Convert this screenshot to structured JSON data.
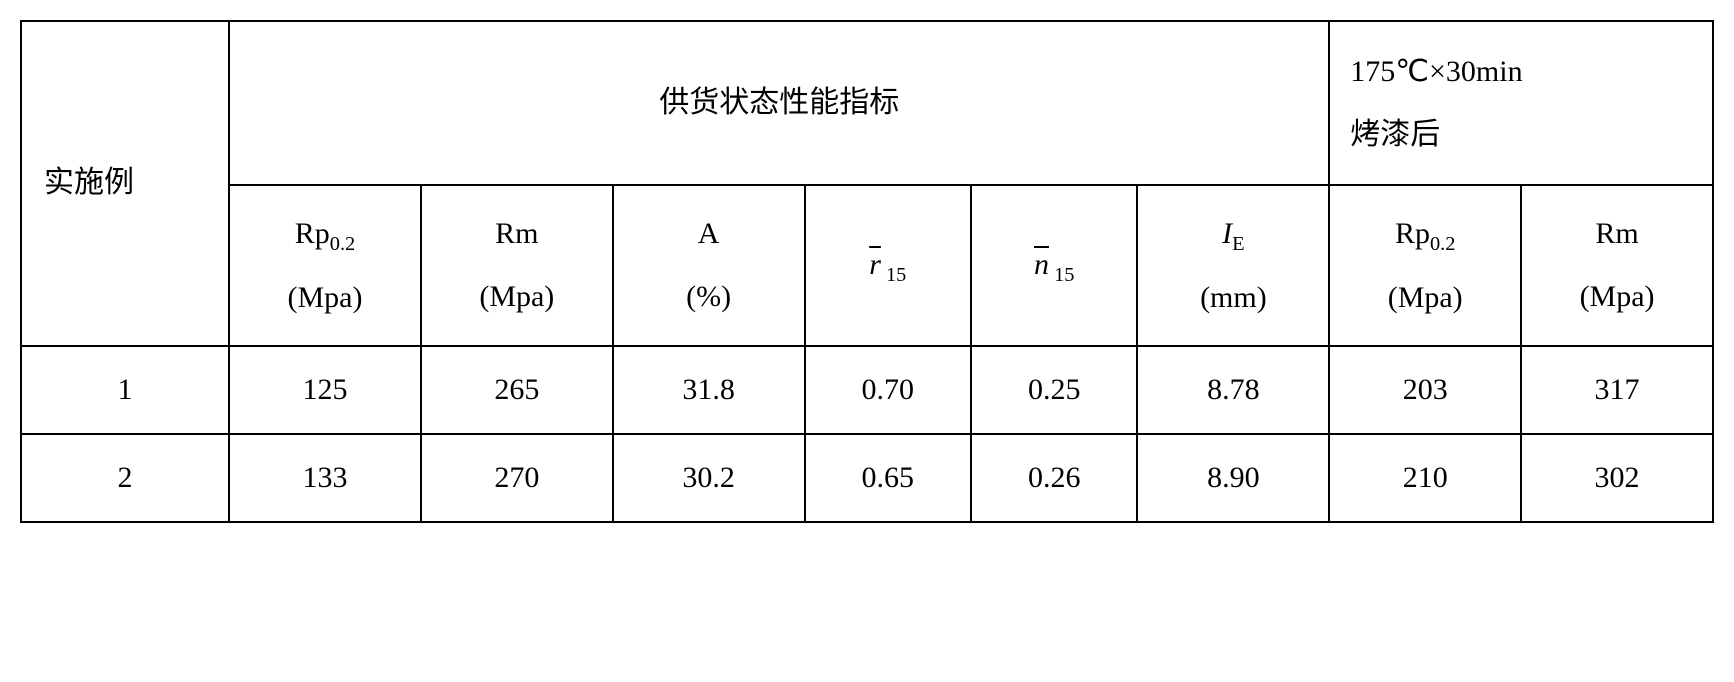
{
  "headers": {
    "example": "实施例",
    "supply_group": "供货状态性能指标",
    "bake_group": "175℃×30min\n烤漆后",
    "rp02": "Rp",
    "rp02_sub": "0.2",
    "rp02_unit": "(Mpa)",
    "rm": "Rm",
    "rm_unit": "(Mpa)",
    "a": "A",
    "a_unit": "(%)",
    "r_bar": "r",
    "r_bar_sub": " 15",
    "n_bar": "n",
    "n_bar_sub": " 15",
    "ie": "I",
    "ie_sub": "E",
    "ie_unit": "(mm)"
  },
  "rows": [
    {
      "ex": "1",
      "rp02": "125",
      "rm": "265",
      "a": "31.8",
      "r15": "0.70",
      "n15": "0.25",
      "ie": "8.78",
      "rp02_b": "203",
      "rm_b": "317"
    },
    {
      "ex": "2",
      "rp02": "133",
      "rm": "270",
      "a": "30.2",
      "r15": "0.65",
      "n15": "0.26",
      "ie": "8.90",
      "rp02_b": "210",
      "rm_b": "302"
    }
  ]
}
